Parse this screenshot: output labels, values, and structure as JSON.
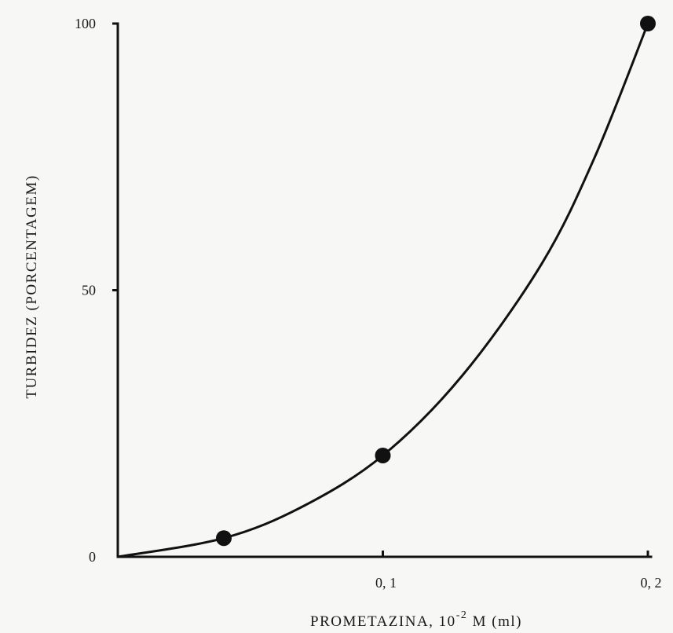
{
  "chart_data": {
    "type": "line",
    "title": "",
    "xlabel": "PROMETAZINA, 10",
    "xlabel_sup": "-2",
    "xlabel_tail": " M (ml)",
    "ylabel": "TURBIDEZ (PORCENTAGEM)",
    "xlim": [
      0,
      0.2
    ],
    "ylim": [
      0,
      100
    ],
    "x_ticks": [
      0.1,
      0.2
    ],
    "x_tick_labels": [
      "0, 1",
      "0, 2"
    ],
    "y_ticks": [
      0,
      50,
      100
    ],
    "y_tick_labels": [
      "0",
      "50",
      "100"
    ],
    "grid": false,
    "series": [
      {
        "points": [
          {
            "x": 0.04,
            "y": 3.5
          },
          {
            "x": 0.1,
            "y": 19
          },
          {
            "x": 0.2,
            "y": 100
          }
        ],
        "curve": [
          {
            "x": 0.0,
            "y": 0
          },
          {
            "x": 0.04,
            "y": 3.5
          },
          {
            "x": 0.07,
            "y": 9.5
          },
          {
            "x": 0.1,
            "y": 19
          },
          {
            "x": 0.13,
            "y": 34
          },
          {
            "x": 0.16,
            "y": 55
          },
          {
            "x": 0.18,
            "y": 75
          },
          {
            "x": 0.2,
            "y": 100
          }
        ]
      }
    ],
    "colors": {
      "ink": "#111111",
      "background": "#f7f7f5"
    }
  }
}
